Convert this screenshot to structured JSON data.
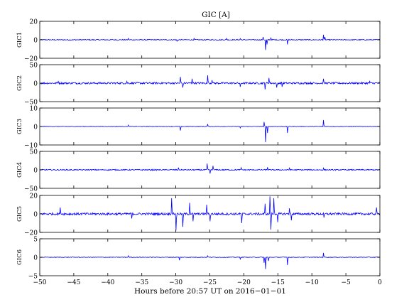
{
  "figure": {
    "title": "GIC [A]",
    "xlabel": "Hours before  20:57 UT on 2016−01−01"
  },
  "colors": {
    "trace": "#0000ff",
    "axes": "#000000",
    "background": "#ffffff"
  },
  "chart_data": [
    {
      "type": "line",
      "ylabel": "GIC1",
      "ylim": [
        -20,
        20
      ],
      "yticks": [
        "20",
        "0",
        "−20"
      ],
      "xlim": [
        -50,
        0
      ],
      "show_xticklabels": false,
      "noise": 0.5,
      "spikes": [
        [
          -37,
          1.5
        ],
        [
          -29.8,
          -1.5
        ],
        [
          -27.3,
          1.5
        ],
        [
          -22.5,
          1.5
        ],
        [
          -20.5,
          1.3
        ],
        [
          -17.2,
          3
        ],
        [
          -16.8,
          -11
        ],
        [
          -16.6,
          -5
        ],
        [
          -16.0,
          2
        ],
        [
          -13.6,
          -5
        ],
        [
          -8.3,
          5.5
        ],
        [
          -8.1,
          3
        ]
      ]
    },
    {
      "type": "line",
      "ylabel": "GIC2",
      "ylim": [
        -50,
        50
      ],
      "yticks": [
        "50",
        "0",
        "−50"
      ],
      "xlim": [
        -50,
        0
      ],
      "show_xticklabels": false,
      "noise": 2.5,
      "spikes": [
        [
          -47.3,
          5
        ],
        [
          -37.2,
          5
        ],
        [
          -29.3,
          17
        ],
        [
          -29.0,
          -12
        ],
        [
          -27.6,
          12
        ],
        [
          -25.3,
          21
        ],
        [
          -24.7,
          8
        ],
        [
          -20.5,
          -10
        ],
        [
          -16.9,
          -17
        ],
        [
          -16.3,
          14
        ],
        [
          -15.2,
          -12
        ],
        [
          -14.4,
          -10
        ],
        [
          -8.3,
          12
        ],
        [
          -1.5,
          5
        ]
      ]
    },
    {
      "type": "line",
      "ylabel": "GIC3",
      "ylim": [
        -10,
        10
      ],
      "yticks": [
        "10",
        "0",
        "−10"
      ],
      "xlim": [
        -50,
        0
      ],
      "show_xticklabels": false,
      "noise": 0.15,
      "spikes": [
        [
          -37,
          0.8
        ],
        [
          -29.3,
          -2.2
        ],
        [
          -25.3,
          1.3
        ],
        [
          -20.5,
          -0.8
        ],
        [
          -17.0,
          2.5
        ],
        [
          -16.8,
          -8.5
        ],
        [
          -16.5,
          -3.5
        ],
        [
          -13.6,
          -3.5
        ],
        [
          -8.3,
          3.5
        ]
      ]
    },
    {
      "type": "line",
      "ylabel": "GIC4",
      "ylim": [
        -50,
        50
      ],
      "yticks": [
        "50",
        "0",
        "−50"
      ],
      "xlim": [
        -50,
        0
      ],
      "show_xticklabels": false,
      "noise": 1.5,
      "spikes": [
        [
          -29.6,
          6
        ],
        [
          -25.4,
          17
        ],
        [
          -25.0,
          -10
        ],
        [
          -24.5,
          11
        ],
        [
          -20.4,
          6
        ],
        [
          -16.5,
          7
        ],
        [
          -13.3,
          5
        ],
        [
          -8.3,
          5
        ]
      ]
    },
    {
      "type": "line",
      "ylabel": "GIC5",
      "ylim": [
        -20,
        20
      ],
      "yticks": [
        "20",
        "0",
        "−20"
      ],
      "xlim": [
        -50,
        0
      ],
      "show_xticklabels": false,
      "noise": 1.2,
      "spikes": [
        [
          -47.0,
          7
        ],
        [
          -36.5,
          -5
        ],
        [
          -30.6,
          17
        ],
        [
          -30.0,
          -18
        ],
        [
          -29.0,
          -14
        ],
        [
          -28.0,
          12
        ],
        [
          -27.5,
          -8
        ],
        [
          -25.5,
          10
        ],
        [
          -25.0,
          -8
        ],
        [
          -20.3,
          -10
        ],
        [
          -16.9,
          11
        ],
        [
          -16.2,
          19
        ],
        [
          -16.0,
          -17
        ],
        [
          -15.6,
          17
        ],
        [
          -15.0,
          -9
        ],
        [
          -13.3,
          6
        ],
        [
          -13.0,
          -7
        ],
        [
          -8.2,
          -4
        ],
        [
          -0.5,
          7
        ]
      ]
    },
    {
      "type": "line",
      "ylabel": "GIC6",
      "ylim": [
        -5,
        5
      ],
      "yticks": [
        "5",
        "0",
        "−5"
      ],
      "xlim": [
        -50,
        0
      ],
      "show_xticklabels": true,
      "xticks": [
        -50,
        -45,
        -40,
        -35,
        -30,
        -25,
        -20,
        -15,
        -10,
        -5,
        0
      ],
      "xticklabels": [
        "−50",
        "−45",
        "−40",
        "−35",
        "−30",
        "−25",
        "−20",
        "−15",
        "−10",
        "−5",
        "0"
      ],
      "noise": 0.08,
      "spikes": [
        [
          -37,
          0.4
        ],
        [
          -29.5,
          -0.8
        ],
        [
          -25.3,
          0.4
        ],
        [
          -20.5,
          -0.5
        ],
        [
          -17.0,
          -1.5
        ],
        [
          -16.8,
          -3.2
        ],
        [
          -16.4,
          -1.0
        ],
        [
          -13.6,
          -2.1
        ],
        [
          -8.3,
          1.2
        ]
      ]
    }
  ]
}
